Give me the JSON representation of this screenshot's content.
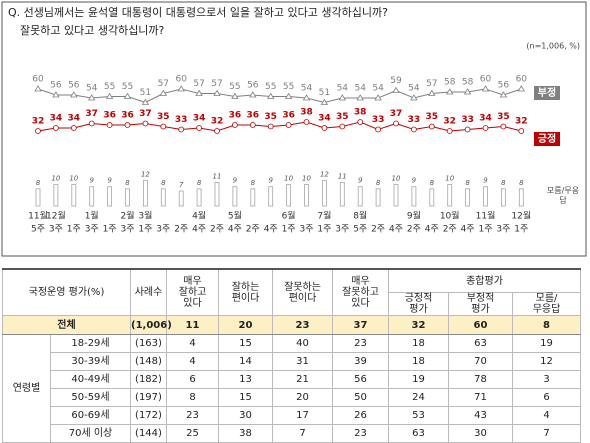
{
  "chart_data": {
    "type": "line",
    "title": "Q. 선생님께서는 윤석열 대통령이 대통령으로서 일을 잘하고 있다고 생각하십니까?",
    "subtitle": "잘못하고 있다고 생각하십니까?",
    "note": "(n=1,006, %)",
    "months": [
      "11월",
      "12월",
      null,
      "1월",
      null,
      "2월",
      "3월",
      null,
      null,
      "4월",
      null,
      "5월",
      null,
      null,
      "6월",
      null,
      "7월",
      null,
      "8월",
      null,
      null,
      "9월",
      null,
      "10월",
      null,
      "11월",
      null,
      "12월"
    ],
    "categories": [
      "5주",
      "3주",
      "1주",
      "3주",
      "1주",
      "3주",
      "1주",
      "3주",
      "2주",
      "4주",
      "2주",
      "4주",
      "2주",
      "4주",
      "1주",
      "3주",
      "1주",
      "3주",
      "5주",
      "2주",
      "4주",
      "2주",
      "4주",
      "2주",
      "4주",
      "1주",
      "3주",
      "1주"
    ],
    "ylim": [
      30,
      62
    ],
    "y2lim": [
      0,
      14
    ],
    "series": [
      {
        "name": "긍정",
        "color": "#c00000",
        "values": [
          32,
          34,
          34,
          37,
          36,
          36,
          37,
          35,
          33,
          34,
          32,
          36,
          36,
          35,
          36,
          38,
          34,
          35,
          38,
          33,
          37,
          33,
          35,
          32,
          33,
          34,
          35,
          32
        ]
      },
      {
        "name": "부정",
        "color": "#808080",
        "values": [
          60,
          56,
          56,
          54,
          55,
          55,
          51,
          57,
          60,
          57,
          57,
          55,
          56,
          55,
          55,
          54,
          51,
          54,
          54,
          54,
          59,
          54,
          57,
          58,
          58,
          60,
          56,
          60
        ]
      },
      {
        "name": "모름/무응답",
        "color": "#a6a6a6",
        "type": "bar",
        "axis": "y2",
        "values": [
          8,
          10,
          10,
          9,
          9,
          8,
          12,
          8,
          7,
          8,
          11,
          9,
          8,
          9,
          10,
          10,
          12,
          11,
          9,
          8,
          10,
          9,
          8,
          10,
          8,
          9,
          8,
          8
        ]
      }
    ]
  },
  "table": {
    "corner": "국정운영 평가(%)",
    "columns": [
      "사례수",
      "매우\n잘하고\n있다",
      "잘하는\n편이다",
      "잘못하는\n편이다",
      "매우\n잘못하고\n있다"
    ],
    "group": "종합평가",
    "group_columns": [
      "긍정적\n평가",
      "부정적\n평가",
      "모름/\n무응답"
    ],
    "total": {
      "label": "전체",
      "n": "(1,006)",
      "values": [
        11,
        20,
        23,
        37,
        32,
        60,
        8
      ]
    },
    "row_group": "연령별",
    "rows": [
      {
        "label": "18-29세",
        "n": "(163)",
        "values": [
          4,
          15,
          40,
          23,
          18,
          63,
          19
        ]
      },
      {
        "label": "30-39세",
        "n": "(148)",
        "values": [
          4,
          14,
          31,
          39,
          18,
          70,
          12
        ]
      },
      {
        "label": "40-49세",
        "n": "(182)",
        "values": [
          6,
          13,
          21,
          56,
          19,
          78,
          3
        ]
      },
      {
        "label": "50-59세",
        "n": "(197)",
        "values": [
          8,
          15,
          20,
          50,
          24,
          71,
          6
        ]
      },
      {
        "label": "60-69세",
        "n": "(172)",
        "values": [
          23,
          30,
          17,
          26,
          53,
          43,
          4
        ]
      },
      {
        "label": "70세 이상",
        "n": "(144)",
        "values": [
          25,
          38,
          7,
          23,
          63,
          30,
          7
        ]
      }
    ]
  }
}
